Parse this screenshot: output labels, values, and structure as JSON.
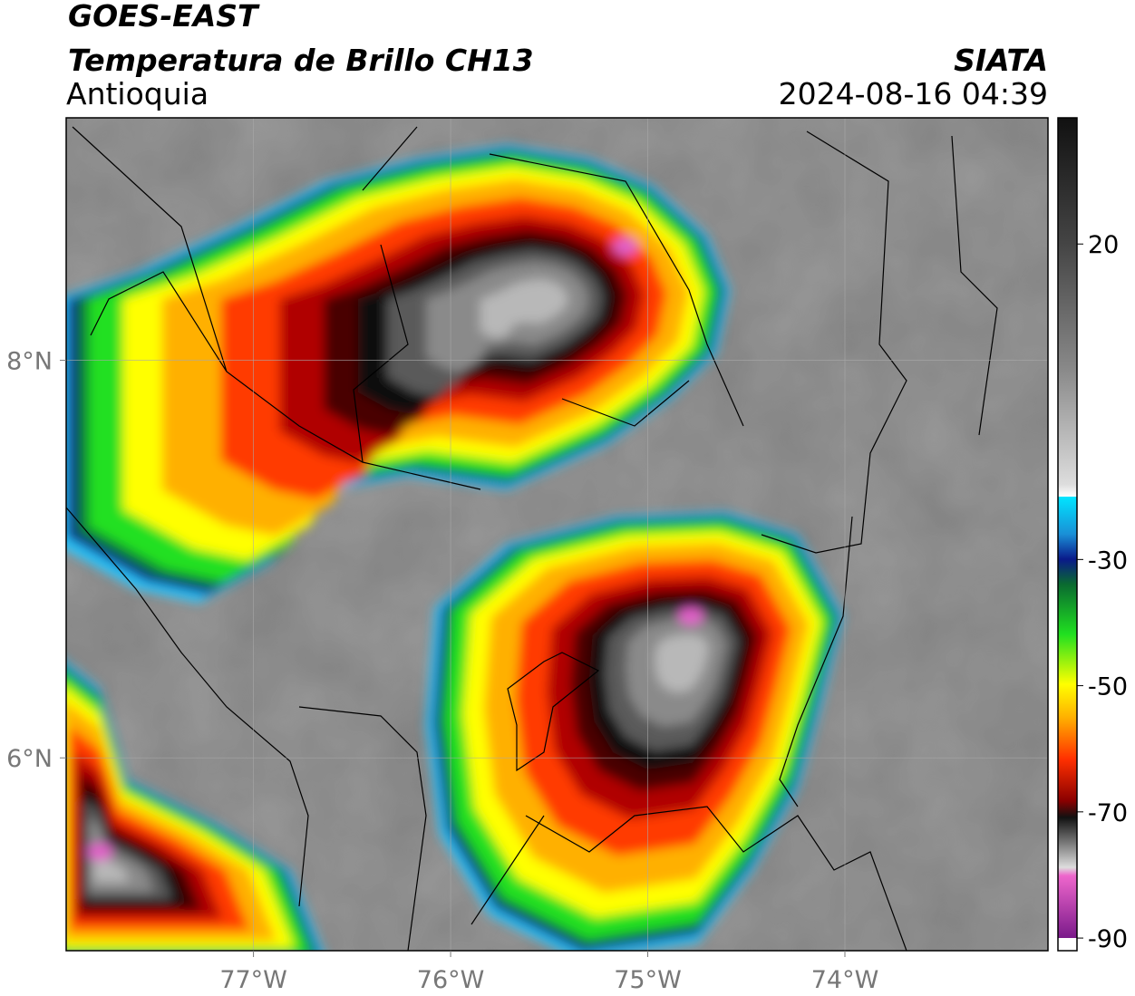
{
  "header": {
    "title": "GOES-EAST",
    "subtitle": "Temperatura de Brillo CH13",
    "region": "Antioquia",
    "source": "SIATA",
    "datetime": "2024-08-16 04:39"
  },
  "map": {
    "xlim": [
      -77.95,
      -72.97
    ],
    "ylim": [
      5.03,
      9.22
    ],
    "xticks": [
      {
        "value": -77,
        "label": "77°W"
      },
      {
        "value": -76,
        "label": "76°W"
      },
      {
        "value": -75,
        "label": "75°W"
      },
      {
        "value": -74,
        "label": "74°W"
      }
    ],
    "yticks": [
      {
        "value": 6,
        "label": "6°N"
      },
      {
        "value": 8,
        "label": "8°N"
      }
    ],
    "grid": true
  },
  "colorbar": {
    "clim": [
      -92,
      40
    ],
    "ticks": [
      20,
      -30,
      -50,
      -70,
      -90
    ]
  }
}
